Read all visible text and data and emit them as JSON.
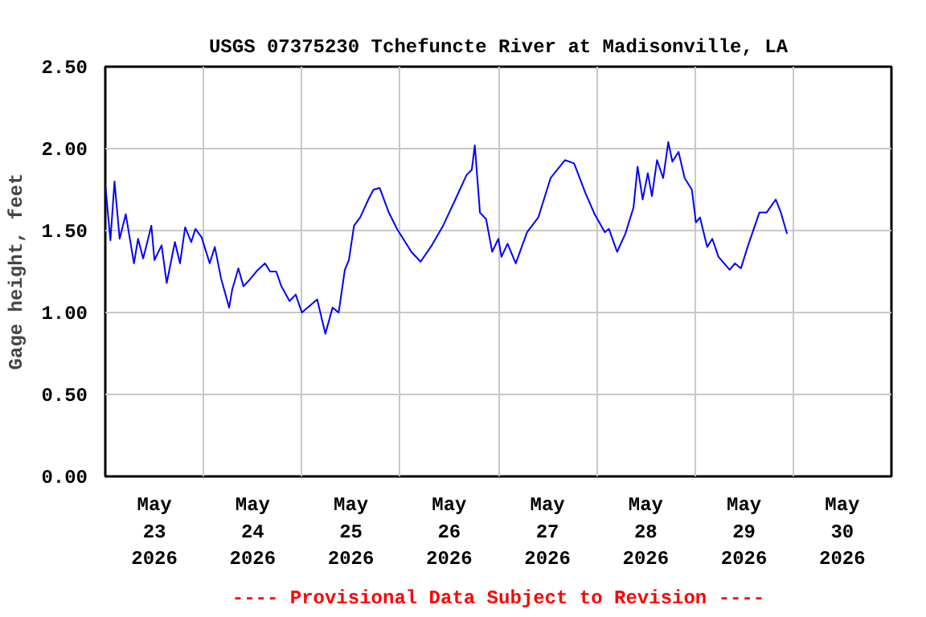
{
  "chart_data": {
    "type": "line",
    "title": "USGS 07375230 Tchefuncte River at Madisonville, LA",
    "ylabel": "Gage height, feet",
    "annotations": [
      "---- Provisional Data Subject to Revision ----"
    ],
    "grid": true,
    "xlim": [
      "2026-05-23T00:00",
      "2026-05-31T00:00"
    ],
    "ylim": [
      0,
      2.5
    ],
    "yticks": [
      {
        "value": 0,
        "label": "0.00"
      },
      {
        "value": 0.5,
        "label": "0.50"
      },
      {
        "value": 1,
        "label": "1.00"
      },
      {
        "value": 1.5,
        "label": "1.50"
      },
      {
        "value": 2,
        "label": "2.00"
      },
      {
        "value": 2.5,
        "label": "2.50"
      }
    ],
    "xticks": [
      {
        "value": "2026-05-23T12:00",
        "label": "May\n23\n2026"
      },
      {
        "value": "2026-05-24T00:00",
        "label": null
      },
      {
        "value": "2026-05-24T12:00",
        "label": "May\n24\n2026"
      },
      {
        "value": "2026-05-25T00:00",
        "label": null
      },
      {
        "value": "2026-05-25T12:00",
        "label": "May\n25\n2026"
      },
      {
        "value": "2026-05-26T00:00",
        "label": null
      },
      {
        "value": "2026-05-26T12:00",
        "label": "May\n26\n2026"
      },
      {
        "value": "2026-05-27T00:00",
        "label": null
      },
      {
        "value": "2026-05-27T12:00",
        "label": "May\n27\n2026"
      },
      {
        "value": "2026-05-28T00:00",
        "label": null
      },
      {
        "value": "2026-05-28T12:00",
        "label": "May\n28\n2026"
      },
      {
        "value": "2026-05-29T00:00",
        "label": null
      },
      {
        "value": "2026-05-29T12:00",
        "label": "May\n29\n2026"
      },
      {
        "value": "2026-05-30T00:00",
        "label": null
      },
      {
        "value": "2026-05-30T12:00",
        "label": "May\n30\n2026"
      }
    ],
    "marker": "none",
    "line_style": "solid",
    "series": [
      {
        "color": "#0000ff",
        "x": [
          "2026-05-23T00:00",
          "2026-05-23T01:15",
          "2026-05-23T02:15",
          "2026-05-23T03:30",
          "2026-05-23T05:00",
          "2026-05-23T07:00",
          "2026-05-23T08:00",
          "2026-05-23T09:15",
          "2026-05-23T11:15",
          "2026-05-23T12:00",
          "2026-05-23T13:45",
          "2026-05-23T15:00",
          "2026-05-23T17:00",
          "2026-05-23T18:15",
          "2026-05-23T19:30",
          "2026-05-23T21:00",
          "2026-05-23T22:00",
          "2026-05-23T23:30",
          "2026-05-24T01:30",
          "2026-05-24T02:45",
          "2026-05-24T04:15",
          "2026-05-24T06:15",
          "2026-05-24T07:00",
          "2026-05-24T08:30",
          "2026-05-24T09:45",
          "2026-05-24T11:15",
          "2026-05-24T13:15",
          "2026-05-24T15:00",
          "2026-05-24T16:15",
          "2026-05-24T17:45",
          "2026-05-24T19:00",
          "2026-05-24T21:00",
          "2026-05-24T22:30",
          "2026-05-25T00:00",
          "2026-05-25T03:45",
          "2026-05-25T05:45",
          "2026-05-25T07:30",
          "2026-05-25T09:00",
          "2026-05-25T10:30",
          "2026-05-25T11:30",
          "2026-05-25T12:45",
          "2026-05-25T14:15",
          "2026-05-25T16:15",
          "2026-05-25T17:30",
          "2026-05-25T19:00",
          "2026-05-25T21:15",
          "2026-05-25T23:15",
          "2026-05-26T02:45",
          "2026-05-26T05:00",
          "2026-05-26T07:45",
          "2026-05-26T10:30",
          "2026-05-26T13:30",
          "2026-05-26T16:15",
          "2026-05-26T17:30",
          "2026-05-26T18:15",
          "2026-05-26T19:30",
          "2026-05-26T21:00",
          "2026-05-26T22:30",
          "2026-05-27T00:00",
          "2026-05-27T00:45",
          "2026-05-27T02:15",
          "2026-05-27T04:15",
          "2026-05-27T07:00",
          "2026-05-27T09:45",
          "2026-05-27T12:45",
          "2026-05-27T16:15",
          "2026-05-27T18:30",
          "2026-05-27T21:15",
          "2026-05-27T23:30",
          "2026-05-28T02:00",
          "2026-05-28T03:00",
          "2026-05-28T05:00",
          "2026-05-28T07:00",
          "2026-05-28T09:00",
          "2026-05-28T10:00",
          "2026-05-28T11:15",
          "2026-05-28T12:30",
          "2026-05-28T13:30",
          "2026-05-28T14:45",
          "2026-05-28T16:15",
          "2026-05-28T17:30",
          "2026-05-28T18:30",
          "2026-05-28T20:00",
          "2026-05-28T21:30",
          "2026-05-28T23:15",
          "2026-05-29T00:15",
          "2026-05-29T01:15",
          "2026-05-29T03:00",
          "2026-05-29T04:15",
          "2026-05-29T05:45",
          "2026-05-29T08:30",
          "2026-05-29T09:45",
          "2026-05-29T11:15",
          "2026-05-29T13:00",
          "2026-05-29T15:45",
          "2026-05-29T17:30",
          "2026-05-29T19:45",
          "2026-05-29T21:00",
          "2026-05-29T22:30"
        ],
        "values": [
          1.78,
          1.44,
          1.8,
          1.45,
          1.6,
          1.3,
          1.45,
          1.33,
          1.53,
          1.32,
          1.41,
          1.18,
          1.43,
          1.3,
          1.52,
          1.43,
          1.51,
          1.46,
          1.3,
          1.4,
          1.21,
          1.03,
          1.14,
          1.27,
          1.16,
          1.2,
          1.26,
          1.3,
          1.25,
          1.25,
          1.16,
          1.07,
          1.11,
          1.0,
          1.08,
          0.87,
          1.03,
          1.0,
          1.26,
          1.32,
          1.53,
          1.58,
          1.69,
          1.75,
          1.76,
          1.61,
          1.51,
          1.37,
          1.31,
          1.41,
          1.53,
          1.69,
          1.84,
          1.87,
          2.02,
          1.61,
          1.57,
          1.37,
          1.45,
          1.34,
          1.42,
          1.3,
          1.49,
          1.58,
          1.82,
          1.93,
          1.91,
          1.73,
          1.6,
          1.49,
          1.51,
          1.37,
          1.48,
          1.64,
          1.89,
          1.69,
          1.85,
          1.71,
          1.93,
          1.82,
          2.04,
          1.92,
          1.98,
          1.82,
          1.75,
          1.55,
          1.58,
          1.4,
          1.45,
          1.34,
          1.26,
          1.3,
          1.27,
          1.41,
          1.61,
          1.61,
          1.69,
          1.61,
          1.48
        ]
      }
    ]
  }
}
